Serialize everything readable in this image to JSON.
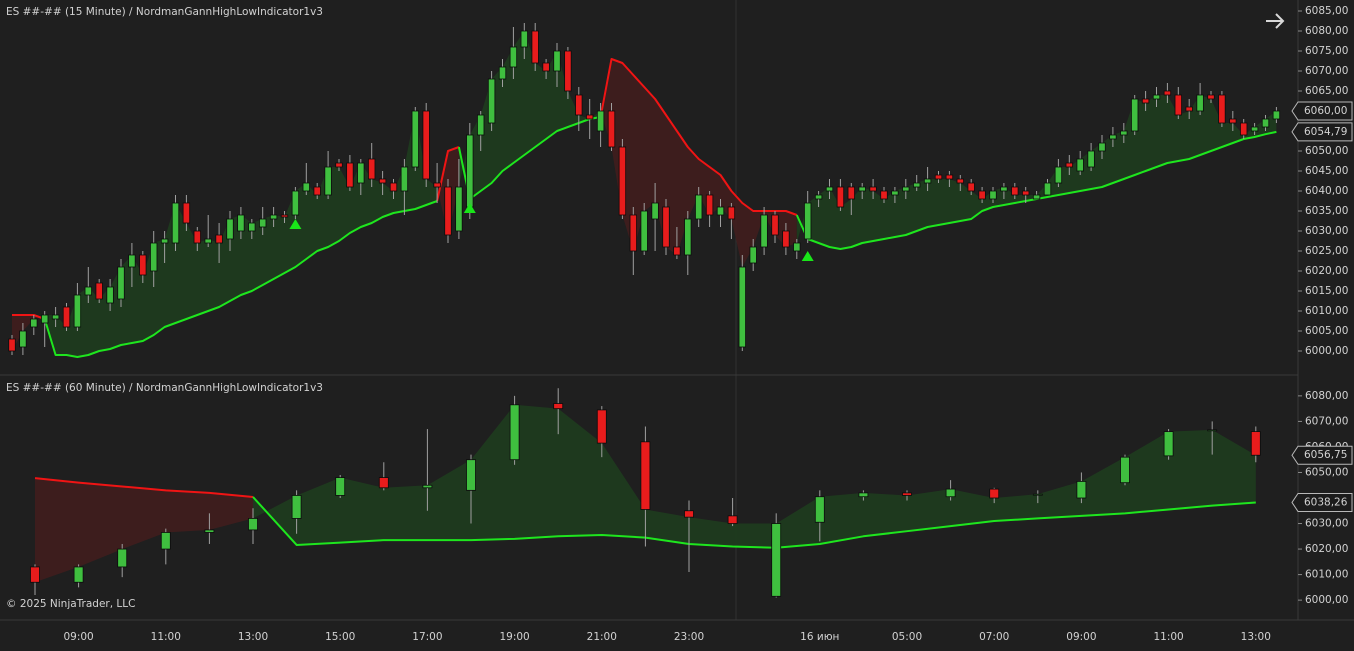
{
  "chart_data": [
    {
      "type": "candlestick",
      "title": "ES ##-## (15 Minute) / NordmanGannHighLowIndicator1v3",
      "up_color": "#3fbf3f",
      "down_color": "#e81c1c",
      "ylim": [
        5994.75,
        6087.25
      ],
      "yticks": [
        {
          "value": 6000,
          "label": "6000,00"
        },
        {
          "value": 6005,
          "label": "6005,00"
        },
        {
          "value": 6010,
          "label": "6010,00"
        },
        {
          "value": 6015,
          "label": "6015,00"
        },
        {
          "value": 6020,
          "label": "6020,00"
        },
        {
          "value": 6025,
          "label": "6025,00"
        },
        {
          "value": 6030,
          "label": "6030,00"
        },
        {
          "value": 6035,
          "label": "6035,00"
        },
        {
          "value": 6040,
          "label": "6040,00"
        },
        {
          "value": 6045,
          "label": "6045,00"
        },
        {
          "value": 6050,
          "label": "6050,00"
        },
        {
          "value": 6055,
          "label": "6055,00"
        },
        {
          "value": 6060,
          "label": "6060,00"
        },
        {
          "value": 6065,
          "label": "6065,00"
        },
        {
          "value": 6070,
          "label": "6070,00"
        },
        {
          "value": 6075,
          "label": "6075,00"
        },
        {
          "value": 6080,
          "label": "6080,00"
        },
        {
          "value": 6085,
          "label": "6085,00"
        }
      ],
      "open": [
        6003,
        6001,
        6006,
        6007,
        6008,
        6011,
        6006,
        6014,
        6017,
        6012,
        6013,
        6021,
        6024,
        6020,
        6027,
        6027,
        6037,
        6030,
        6027,
        6029,
        6028,
        6030,
        6030,
        6031,
        6033,
        6034,
        6034,
        6040,
        6041,
        6039,
        6047,
        6047,
        6042,
        6048,
        6043,
        6042,
        6040,
        6046,
        6060,
        6042,
        6041,
        6030,
        6036,
        6054,
        6057,
        6068,
        6071,
        6076,
        6080,
        6072,
        6070,
        6075,
        6064,
        6059,
        6055,
        6060,
        6051,
        6034,
        6025,
        6033,
        6036,
        6026,
        6024,
        6033,
        6039,
        6034,
        6036,
        6001,
        6022,
        6026,
        6034,
        6030,
        6025,
        6028,
        6038,
        6040,
        6041,
        6041,
        6040,
        6041,
        6040,
        6039,
        6040,
        6041,
        6042,
        6044,
        6044,
        6043,
        6042,
        6040,
        6038,
        6040,
        6041,
        6040,
        6038,
        6039,
        6042,
        6047,
        6045,
        6046,
        6050,
        6053,
        6054,
        6055,
        6063,
        6063,
        6065,
        6064,
        6061,
        6060,
        6064,
        6064,
        6058,
        6057,
        6055,
        6056,
        6058
      ],
      "high": [
        6004,
        6007,
        6009,
        6010,
        6011,
        6012,
        6017,
        6021,
        6018,
        6018,
        6023,
        6027,
        6025,
        6030,
        6030,
        6039,
        6039,
        6031,
        6034,
        6032,
        6035,
        6036,
        6033,
        6036,
        6036,
        6035,
        6041,
        6047,
        6042,
        6050,
        6048,
        6049,
        6048,
        6052,
        6045,
        6043,
        6048,
        6061,
        6062,
        6047,
        6043,
        6048,
        6057,
        6060,
        6070,
        6073,
        6081,
        6082,
        6082,
        6073,
        6077,
        6076,
        6066,
        6063,
        6062,
        6062,
        6053,
        6036,
        6037,
        6042,
        6038,
        6031,
        6035,
        6041,
        6040,
        6038,
        6037,
        6024,
        6028,
        6036,
        6035,
        6032,
        6028,
        6040,
        6040,
        6043,
        6043,
        6042,
        6042,
        6043,
        6041,
        6041,
        6043,
        6044,
        6046,
        6045,
        6045,
        6044,
        6043,
        6041,
        6041,
        6042,
        6042,
        6041,
        6040,
        6043,
        6048,
        6049,
        6050,
        6052,
        6054,
        6056,
        6057,
        6064,
        6065,
        6066,
        6067,
        6066,
        6063,
        6067,
        6065,
        6065,
        6060,
        6058,
        6057,
        6059,
        6061
      ],
      "low": [
        5999,
        5999,
        6004,
        6001,
        6006,
        6005,
        6005,
        6012,
        6012,
        6010,
        6011,
        6016,
        6017,
        6016,
        6022,
        6025,
        6030,
        6025,
        6026,
        6022,
        6025,
        6028,
        6028,
        6029,
        6031,
        6032,
        6033,
        6039,
        6038,
        6038,
        6045,
        6040,
        6039,
        6041,
        6039,
        6038,
        6034,
        6045,
        6041,
        6037,
        6027,
        6028,
        6033,
        6050,
        6055,
        6066,
        6068,
        6073,
        6070,
        6068,
        6066,
        6063,
        6055,
        6053,
        6051,
        6050,
        6033,
        6019,
        6024,
        6025,
        6024,
        6023,
        6019,
        6031,
        6031,
        6031,
        6028,
        6000,
        6020,
        6024,
        6027,
        6024,
        6023,
        6027,
        6036,
        6038,
        6035,
        6034,
        6038,
        6038,
        6037,
        6037,
        6038,
        6040,
        6040,
        6042,
        6041,
        6040,
        6039,
        6037,
        6037,
        6038,
        6038,
        6037,
        6038,
        6039,
        6041,
        6044,
        6044,
        6045,
        6048,
        6051,
        6052,
        6054,
        6060,
        6061,
        6062,
        6058,
        6058,
        6059,
        6062,
        6056,
        6055,
        6053,
        6054,
        6055,
        6057
      ],
      "close": [
        6000,
        6005,
        6008,
        6009,
        6009,
        6006,
        6014,
        6016,
        6013,
        6016,
        6021,
        6024,
        6019,
        6027,
        6028,
        6037,
        6032,
        6027,
        6028,
        6027,
        6033,
        6034,
        6032,
        6033,
        6034,
        6033.5,
        6040,
        6042,
        6039,
        6046,
        6046,
        6041,
        6047,
        6043,
        6042,
        6040,
        6046,
        6060,
        6043,
        6041,
        6029,
        6041,
        6054,
        6059,
        6068,
        6071,
        6076,
        6080,
        6072,
        6070,
        6075,
        6065,
        6059,
        6058,
        6060,
        6051,
        6034,
        6025,
        6035,
        6037,
        6026,
        6024,
        6033,
        6039,
        6034,
        6036,
        6033,
        6021,
        6026,
        6034,
        6029,
        6026,
        6027,
        6037,
        6039,
        6041,
        6036,
        6038,
        6041,
        6040,
        6038,
        6040,
        6041,
        6042,
        6043,
        6043,
        6043,
        6042,
        6040,
        6038,
        6040,
        6041,
        6039,
        6039,
        6039,
        6042,
        6046,
        6046,
        6048,
        6050,
        6052,
        6054,
        6055,
        6063,
        6062,
        6064,
        6064,
        6059,
        6060,
        6064,
        6063,
        6057,
        6057,
        6054,
        6056,
        6058,
        6060
      ],
      "lines": [
        {
          "color": "#f01414",
          "fill": "#3f1e1e",
          "values": [
            6009,
            6009,
            6009,
            6008,
            null,
            null,
            null,
            null,
            null,
            null,
            null,
            null,
            null,
            null,
            null,
            null,
            null,
            null,
            null,
            null,
            null,
            null,
            null,
            null,
            null,
            null,
            null,
            null,
            null,
            null,
            null,
            null,
            null,
            null,
            null,
            null,
            null,
            null,
            null,
            6037.5,
            6050,
            6051,
            null,
            null,
            null,
            null,
            null,
            null,
            null,
            null,
            null,
            null,
            null,
            null,
            6058.5,
            6073,
            6072,
            6069,
            6066,
            6063,
            6059,
            6055,
            6051,
            6048,
            6046,
            6044,
            6040,
            6037,
            6035,
            6035,
            6035,
            6035,
            6034,
            null,
            null,
            null,
            null,
            null,
            null,
            null,
            null,
            null,
            null,
            null,
            null,
            null,
            null,
            null,
            null,
            null,
            null,
            null,
            null,
            null,
            null,
            null,
            null,
            null,
            null,
            null,
            null,
            null,
            null,
            null,
            null,
            null,
            null,
            null,
            null,
            null,
            null,
            null,
            null,
            null,
            null,
            null,
            null
          ]
        },
        {
          "color": "#1ee61e",
          "fill": "#1f3b1f",
          "values": [
            null,
            null,
            null,
            6008,
            5999,
            5999,
            5998.5,
            5999,
            6000,
            6000.5,
            6001.5,
            6002,
            6002.5,
            6004,
            6006,
            6007,
            6008,
            6009,
            6010,
            6011,
            6012.5,
            6014,
            6015,
            6016.5,
            6018,
            6019.5,
            6021,
            6023,
            6025,
            6026,
            6027.5,
            6029.5,
            6031,
            6032,
            6033.5,
            6034.5,
            6035,
            6035.5,
            6036.5,
            6037.5,
            null,
            6051,
            6038,
            6040,
            6042,
            6045,
            6047,
            6049,
            6051,
            6053,
            6055,
            6056,
            6057,
            6058,
            6058.5,
            null,
            null,
            null,
            null,
            null,
            null,
            null,
            null,
            null,
            null,
            null,
            null,
            null,
            null,
            null,
            null,
            null,
            6034,
            6028,
            6027,
            6026,
            6025.5,
            6026,
            6027,
            6027.5,
            6028,
            6028.5,
            6029,
            6030,
            6031,
            6031.5,
            6032,
            6032.5,
            6033,
            6035,
            6036,
            6036.5,
            6037,
            6037.5,
            6038,
            6038.5,
            6039,
            6039.5,
            6040,
            6040.5,
            6041,
            6042,
            6043,
            6044,
            6045,
            6046,
            6047,
            6047.5,
            6048,
            6049,
            6050,
            6051,
            6052,
            6053,
            6053.5,
            6054.2,
            6054.79
          ]
        }
      ],
      "signals": {
        "color": "#19e619",
        "values": [
          null,
          null,
          null,
          null,
          null,
          null,
          null,
          null,
          null,
          null,
          null,
          null,
          null,
          null,
          null,
          null,
          null,
          null,
          null,
          null,
          null,
          null,
          null,
          null,
          null,
          null,
          6033,
          null,
          null,
          null,
          null,
          null,
          null,
          null,
          null,
          null,
          null,
          null,
          null,
          null,
          null,
          null,
          6037,
          null,
          null,
          null,
          null,
          null,
          null,
          null,
          null,
          null,
          null,
          null,
          null,
          null,
          null,
          null,
          null,
          null,
          null,
          null,
          null,
          null,
          null,
          null,
          null,
          null,
          null,
          null,
          null,
          null,
          null,
          6025,
          null,
          null,
          null,
          null,
          null,
          null,
          null,
          null,
          null,
          null,
          null,
          null,
          null,
          null,
          null,
          null,
          null,
          null,
          null,
          null,
          null,
          null,
          null,
          null,
          null,
          null,
          null,
          null,
          null,
          null,
          null,
          null,
          null,
          null,
          null,
          null,
          null,
          null,
          null,
          null,
          null,
          null,
          null
        ]
      },
      "price_badges": [
        {
          "value": 6060,
          "label": "6060,00"
        },
        {
          "value": 6054.79,
          "label": "6054,79"
        }
      ]
    },
    {
      "type": "candlestick",
      "title": "ES ##-## (60 Minute) / NordmanGannHighLowIndicator1v3",
      "annotation": "© 2025 NinjaTrader, LLC",
      "up_color": "#3fbf3f",
      "down_color": "#e81c1c",
      "ylim": [
        5993,
        6087
      ],
      "yticks": [
        {
          "value": 6000,
          "label": "6000,00"
        },
        {
          "value": 6010,
          "label": "6010,00"
        },
        {
          "value": 6020,
          "label": "6020,00"
        },
        {
          "value": 6030,
          "label": "6030,00"
        },
        {
          "value": 6040,
          "label": "6040,00"
        },
        {
          "value": 6050,
          "label": "6050,00"
        },
        {
          "value": 6060,
          "label": "6060,00"
        },
        {
          "value": 6070,
          "label": "6070,00"
        },
        {
          "value": 6080,
          "label": "6080,00"
        }
      ],
      "categories": [
        null,
        "09:00",
        null,
        "11:00",
        null,
        "13:00",
        null,
        "15:00",
        null,
        "17:00",
        null,
        "19:00",
        null,
        "21:00",
        null,
        "23:00",
        null,
        null,
        "16 июн",
        null,
        "05:00",
        null,
        "07:00",
        null,
        "09:00",
        null,
        "11:00",
        null,
        "13:00"
      ],
      "open": [
        6013,
        6007,
        6013,
        6020,
        6026.5,
        6027.5,
        6032,
        6041,
        6048,
        6044,
        6043,
        6055,
        6077,
        6074.5,
        6062,
        6035,
        6033,
        6001.5,
        6030.5,
        6040.5,
        6042,
        6040.5,
        6043.5,
        6041.5,
        6040,
        6046,
        6056.5,
        6066.5,
        6066
      ],
      "high": [
        6014,
        6014,
        6022,
        6028,
        6034,
        6036,
        6043,
        6049,
        6054,
        6067,
        6057,
        6080,
        6083,
        6076,
        6068,
        6039,
        6040,
        6034,
        6043,
        6043,
        6043,
        6047,
        6044,
        6043,
        6050,
        6057,
        6067,
        6070,
        6068
      ],
      "low": [
        6002,
        6005,
        6009,
        6014,
        6022,
        6022,
        6026,
        6040,
        6043,
        6035,
        6030,
        6053,
        6065,
        6056,
        6021,
        6011,
        6029,
        6001,
        6023,
        6039,
        6039,
        6039,
        6038,
        6038,
        6038,
        6045,
        6055,
        6057,
        6054
      ],
      "close": [
        6007,
        6013,
        6020,
        6026.5,
        6027.5,
        6032,
        6041,
        6048,
        6044,
        6045,
        6055,
        6076.5,
        6075,
        6061.5,
        6035.5,
        6032.5,
        6030,
        6030,
        6040.5,
        6042,
        6041,
        6043.5,
        6040,
        6041.5,
        6046.5,
        6056,
        6066,
        6066.7,
        6056.75
      ],
      "lines": [
        {
          "color": "#f01414",
          "fill": "#3f1e1e",
          "values": [
            6047.8,
            6046,
            6044.5,
            6043,
            6042,
            6040.4,
            null,
            null,
            null,
            null,
            null,
            null,
            null,
            null,
            null,
            null,
            null,
            null,
            null,
            null,
            null,
            null,
            null,
            null,
            null,
            null,
            null,
            null,
            null
          ]
        },
        {
          "color": "#1ee61e",
          "fill": "#1f3b1f",
          "values": [
            null,
            null,
            null,
            null,
            null,
            6040.4,
            6021.6,
            6022.5,
            6023.5,
            6023.5,
            6023.5,
            6024,
            6025,
            6025.5,
            6024.5,
            6022,
            6021,
            6020.5,
            6022,
            6025,
            6027,
            6029,
            6031,
            6032,
            6033,
            6034,
            6035.5,
            6037,
            6038.26
          ]
        }
      ],
      "price_badges": [
        {
          "value": 6056.75,
          "label": "6056,75"
        },
        {
          "value": 6038.26,
          "label": "6038,26"
        }
      ]
    }
  ]
}
